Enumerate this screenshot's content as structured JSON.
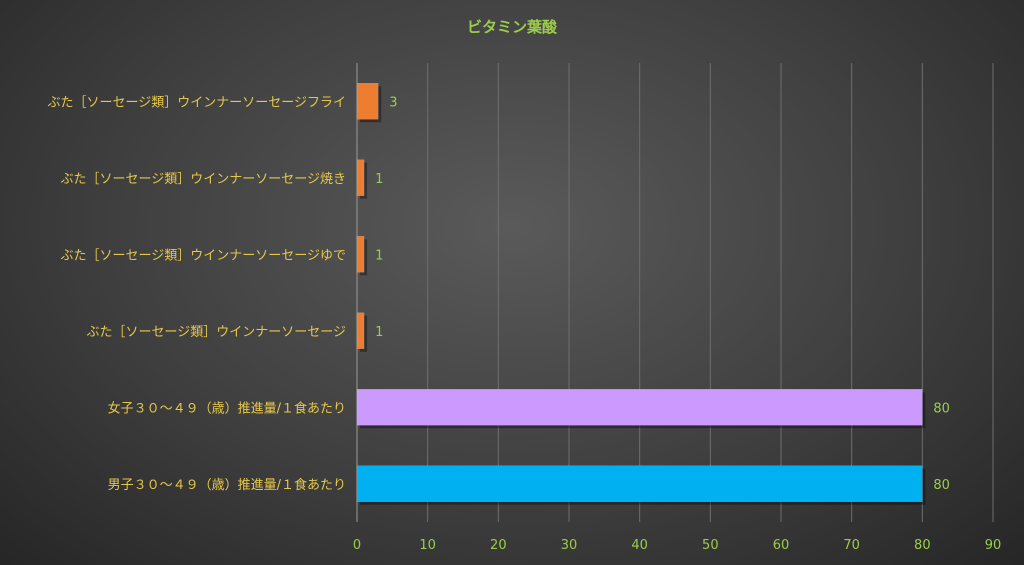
{
  "chart_data": {
    "type": "bar",
    "orientation": "horizontal",
    "title": "ビタミン葉酸",
    "categories": [
      "ぶた［ソーセージ類］ウインナーソーセージフライ",
      "ぶた［ソーセージ類］ウインナーソーセージ焼き",
      "ぶた［ソーセージ類］ウインナーソーセージゆで",
      "ぶた［ソーセージ類］ウインナーソーセージ",
      "女子３０～４９（歳）推進量/１食あたり",
      "男子３０～４９（歳）推進量/１食あたり"
    ],
    "values": [
      3,
      1,
      1,
      1,
      80,
      80
    ],
    "value_labels": [
      "3",
      "1",
      "1",
      "1",
      "80",
      "80"
    ],
    "bar_colors": [
      "#ed7d31",
      "#ed7d31",
      "#ed7d31",
      "#ed7d31",
      "#cc99ff",
      "#00b0f0"
    ],
    "xlim": [
      0,
      90
    ],
    "xticks": [
      "0",
      "10",
      "20",
      "30",
      "40",
      "50",
      "60",
      "70",
      "80",
      "90"
    ],
    "grid": true,
    "legend": "none",
    "colors": {
      "title": "#9ccc4b",
      "category_text": "#e6c84a",
      "tick_text": "#9ccc4b",
      "data_label_text": "#9ccc4b",
      "gridline": "#6e6e6e"
    }
  }
}
